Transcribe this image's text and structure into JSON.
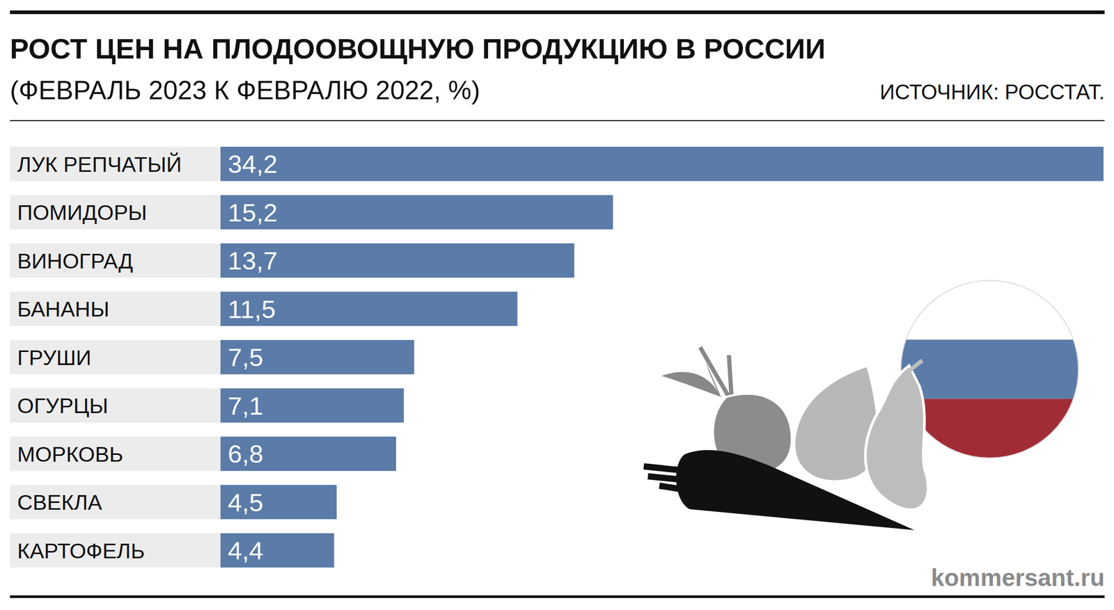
{
  "chart_data": {
    "type": "bar",
    "orientation": "horizontal",
    "title": "РОСТ ЦЕН НА ПЛОДООВОЩНУЮ ПРОДУКЦИЮ В РОССИИ",
    "subtitle": "(ФЕВРАЛЬ 2023 К ФЕВРАЛЮ 2022, %)",
    "source": "ИСТОЧНИК: РОССТАТ.",
    "credit": "kommersant.ru",
    "categories": [
      "ЛУК РЕПЧАТЫЙ",
      "ПОМИДОРЫ",
      "ВИНОГРАД",
      "БАНАНЫ",
      "ГРУШИ",
      "ОГУРЦЫ",
      "МОРКОВЬ",
      "СВЕКЛА",
      "КАРТОФЕЛЬ"
    ],
    "values": [
      34.2,
      15.2,
      13.7,
      11.5,
      7.5,
      7.1,
      6.8,
      4.5,
      4.4
    ],
    "value_labels": [
      "34,2",
      "15,2",
      "13,7",
      "11,5",
      "7,5",
      "7,1",
      "6,8",
      "4,5",
      "4,4"
    ],
    "color": "#5b7ba8",
    "xlim": [
      0,
      34.2
    ],
    "data_labels": true,
    "tick_labels": false,
    "grid": false
  }
}
